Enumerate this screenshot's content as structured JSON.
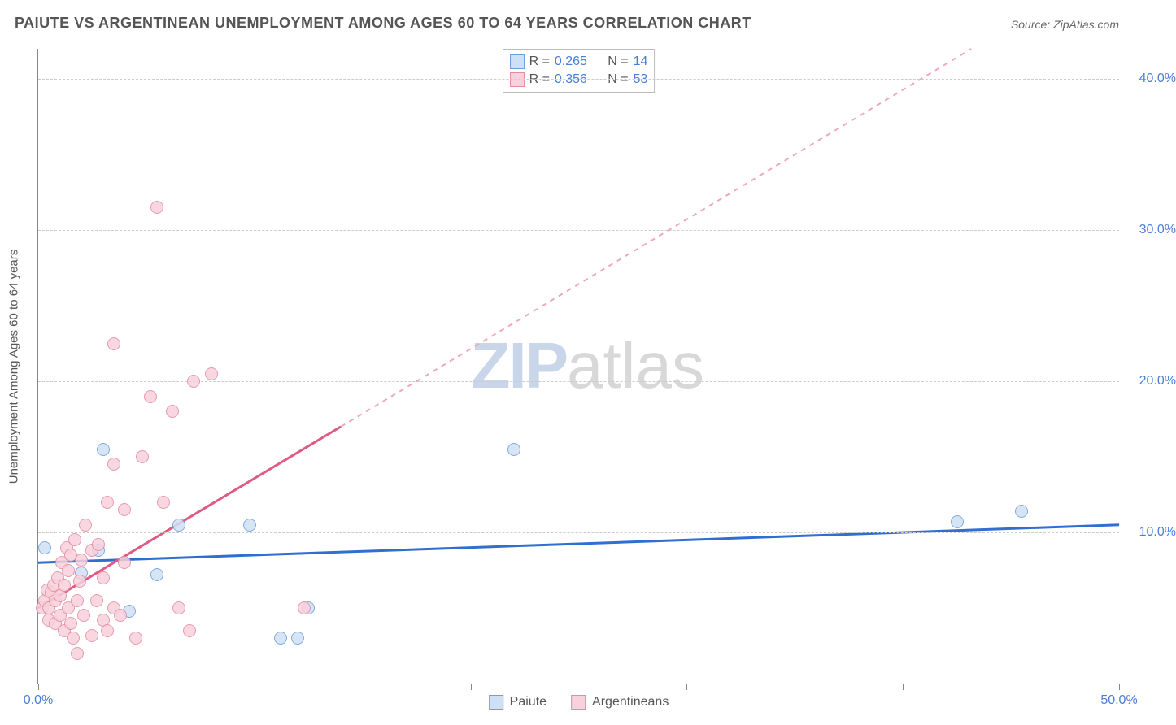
{
  "title": "PAIUTE VS ARGENTINEAN UNEMPLOYMENT AMONG AGES 60 TO 64 YEARS CORRELATION CHART",
  "source": "Source: ZipAtlas.com",
  "ylabel": "Unemployment Among Ages 60 to 64 years",
  "watermark": {
    "zip": "ZIP",
    "atlas": "atlas"
  },
  "chart": {
    "type": "scatter",
    "xlim": [
      0,
      50
    ],
    "ylim": [
      0,
      42
    ],
    "xticks": [
      0,
      10,
      20,
      30,
      40,
      50
    ],
    "xtick_labels": [
      "0.0%",
      "",
      "",
      "",
      "",
      "50.0%"
    ],
    "yticks": [
      10,
      20,
      30,
      40
    ],
    "ytick_labels": [
      "10.0%",
      "20.0%",
      "30.0%",
      "40.0%"
    ],
    "grid_color": "#cccccc",
    "background_color": "#ffffff",
    "axis_color": "#888888",
    "tick_font_color": "#4a7fd8"
  },
  "series": [
    {
      "name": "Paiute",
      "key": "paiute",
      "marker_fill": "#cfe0f5",
      "marker_stroke": "#6b9fd8",
      "marker_size": 16,
      "line_color": "#2f6fd0",
      "line_width": 3,
      "dash_color": "#9fc0e8",
      "R": "0.265",
      "N": "14",
      "trend": {
        "x1": 0,
        "y1": 8.0,
        "x2": 50,
        "y2": 10.5
      },
      "points": [
        {
          "x": 0.3,
          "y": 9.0
        },
        {
          "x": 2.8,
          "y": 8.8
        },
        {
          "x": 3.0,
          "y": 15.5
        },
        {
          "x": 2.0,
          "y": 7.3
        },
        {
          "x": 4.2,
          "y": 4.8
        },
        {
          "x": 5.5,
          "y": 7.2
        },
        {
          "x": 6.5,
          "y": 10.5
        },
        {
          "x": 9.8,
          "y": 10.5
        },
        {
          "x": 11.2,
          "y": 3.0
        },
        {
          "x": 12.0,
          "y": 3.0
        },
        {
          "x": 12.5,
          "y": 5.0
        },
        {
          "x": 22.0,
          "y": 15.5
        },
        {
          "x": 42.5,
          "y": 10.7
        },
        {
          "x": 45.5,
          "y": 11.4
        }
      ]
    },
    {
      "name": "Argentineans",
      "key": "argentineans",
      "marker_fill": "#f7d1db",
      "marker_stroke": "#e28ba3",
      "marker_size": 16,
      "line_color": "#e05a84",
      "line_width": 3,
      "dash_color": "#f0a8bc",
      "R": "0.356",
      "N": "53",
      "trend": {
        "x1": 0,
        "y1": 5.0,
        "x2": 14,
        "y2": 17.0
      },
      "points": [
        {
          "x": 0.2,
          "y": 5.0
        },
        {
          "x": 0.3,
          "y": 5.5
        },
        {
          "x": 0.4,
          "y": 6.2
        },
        {
          "x": 0.5,
          "y": 5.0
        },
        {
          "x": 0.5,
          "y": 4.2
        },
        {
          "x": 0.6,
          "y": 6.0
        },
        {
          "x": 0.7,
          "y": 6.5
        },
        {
          "x": 0.8,
          "y": 5.5
        },
        {
          "x": 0.8,
          "y": 4.0
        },
        {
          "x": 0.9,
          "y": 7.0
        },
        {
          "x": 1.0,
          "y": 5.8
        },
        {
          "x": 1.0,
          "y": 4.5
        },
        {
          "x": 1.1,
          "y": 8.0
        },
        {
          "x": 1.2,
          "y": 3.5
        },
        {
          "x": 1.2,
          "y": 6.5
        },
        {
          "x": 1.3,
          "y": 9.0
        },
        {
          "x": 1.4,
          "y": 5.0
        },
        {
          "x": 1.4,
          "y": 7.5
        },
        {
          "x": 1.5,
          "y": 4.0
        },
        {
          "x": 1.5,
          "y": 8.5
        },
        {
          "x": 1.6,
          "y": 3.0
        },
        {
          "x": 1.7,
          "y": 9.5
        },
        {
          "x": 1.8,
          "y": 5.5
        },
        {
          "x": 1.8,
          "y": 2.0
        },
        {
          "x": 1.9,
          "y": 6.8
        },
        {
          "x": 2.0,
          "y": 8.2
        },
        {
          "x": 2.1,
          "y": 4.5
        },
        {
          "x": 2.2,
          "y": 10.5
        },
        {
          "x": 2.5,
          "y": 3.2
        },
        {
          "x": 2.5,
          "y": 8.8
        },
        {
          "x": 2.7,
          "y": 5.5
        },
        {
          "x": 2.8,
          "y": 9.2
        },
        {
          "x": 3.0,
          "y": 4.2
        },
        {
          "x": 3.0,
          "y": 7.0
        },
        {
          "x": 3.2,
          "y": 12.0
        },
        {
          "x": 3.2,
          "y": 3.5
        },
        {
          "x": 3.5,
          "y": 5.0
        },
        {
          "x": 3.5,
          "y": 22.5
        },
        {
          "x": 3.5,
          "y": 14.5
        },
        {
          "x": 3.8,
          "y": 4.5
        },
        {
          "x": 4.0,
          "y": 11.5
        },
        {
          "x": 4.0,
          "y": 8.0
        },
        {
          "x": 4.5,
          "y": 3.0
        },
        {
          "x": 4.8,
          "y": 15.0
        },
        {
          "x": 5.2,
          "y": 19.0
        },
        {
          "x": 5.5,
          "y": 31.5
        },
        {
          "x": 5.8,
          "y": 12.0
        },
        {
          "x": 6.2,
          "y": 18.0
        },
        {
          "x": 6.5,
          "y": 5.0
        },
        {
          "x": 7.0,
          "y": 3.5
        },
        {
          "x": 7.2,
          "y": 20.0
        },
        {
          "x": 8.0,
          "y": 20.5
        },
        {
          "x": 12.3,
          "y": 5.0
        }
      ]
    }
  ],
  "legend_bottom": [
    {
      "label": "Paiute",
      "fill": "#cfe0f5",
      "stroke": "#6b9fd8"
    },
    {
      "label": "Argentineans",
      "fill": "#f7d1db",
      "stroke": "#e28ba3"
    }
  ]
}
